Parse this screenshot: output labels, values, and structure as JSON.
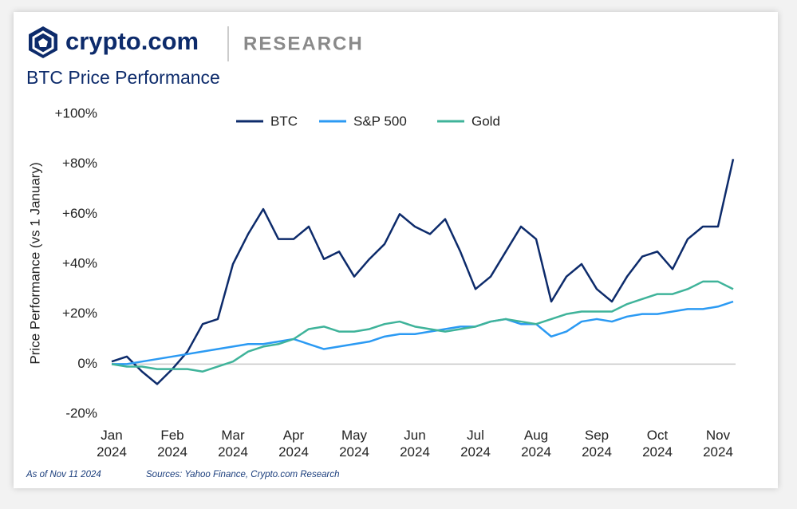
{
  "header": {
    "brand": "crypto.com",
    "section": "RESEARCH"
  },
  "chart_data": {
    "type": "line",
    "title": "BTC Price Performance",
    "y_label": "Price Performance (vs 1 January)",
    "categories": [
      "Jan\n2024",
      null,
      null,
      null,
      "Feb\n2024",
      null,
      null,
      null,
      "Mar\n2024",
      null,
      null,
      null,
      "Apr\n2024",
      null,
      null,
      null,
      "May\n2024",
      null,
      null,
      null,
      "Jun\n2024",
      null,
      null,
      null,
      "Jul\n2024",
      null,
      null,
      null,
      "Aug\n2024",
      null,
      null,
      null,
      "Sep\n2024",
      null,
      null,
      null,
      "Oct\n2024",
      null,
      null,
      null,
      "Nov\n2024",
      null
    ],
    "series": [
      {
        "name": "BTC",
        "color": "#0d2b6b",
        "values": [
          1,
          3,
          -3,
          -8,
          -2,
          5,
          16,
          18,
          40,
          52,
          62,
          50,
          50,
          55,
          42,
          45,
          35,
          42,
          48,
          60,
          55,
          52,
          58,
          45,
          30,
          35,
          45,
          55,
          50,
          25,
          35,
          40,
          30,
          25,
          35,
          43,
          45,
          38,
          50,
          55,
          55,
          82
        ]
      },
      {
        "name": "S&P 500",
        "color": "#2b9af3",
        "values": [
          0,
          0,
          1,
          2,
          3,
          4,
          5,
          6,
          7,
          8,
          8,
          9,
          10,
          8,
          6,
          7,
          8,
          9,
          11,
          12,
          12,
          13,
          14,
          15,
          15,
          17,
          18,
          16,
          16,
          11,
          13,
          17,
          18,
          17,
          19,
          20,
          20,
          21,
          22,
          22,
          23,
          25
        ]
      },
      {
        "name": "Gold",
        "color": "#3fb39a",
        "values": [
          0,
          -1,
          -1,
          -2,
          -2,
          -2,
          -3,
          -1,
          1,
          5,
          7,
          8,
          10,
          14,
          15,
          13,
          13,
          14,
          16,
          17,
          15,
          14,
          13,
          14,
          15,
          17,
          18,
          17,
          16,
          18,
          20,
          21,
          21,
          21,
          24,
          26,
          28,
          28,
          30,
          33,
          33,
          30
        ]
      }
    ],
    "ylim": [
      -20,
      100
    ],
    "yticks": [
      {
        "value": -20,
        "label": "-20%"
      },
      {
        "value": 0,
        "label": "0%"
      },
      {
        "value": 20,
        "label": "+20%"
      },
      {
        "value": 40,
        "label": "+40%"
      },
      {
        "value": 60,
        "label": "+60%"
      },
      {
        "value": 80,
        "label": "+80%"
      },
      {
        "value": 100,
        "label": "+100%"
      }
    ],
    "legend": "top",
    "grid": false
  },
  "footer": {
    "as_of": "As of Nov 11 2024",
    "sources": "Sources: Yahoo Finance, Crypto.com Research"
  }
}
